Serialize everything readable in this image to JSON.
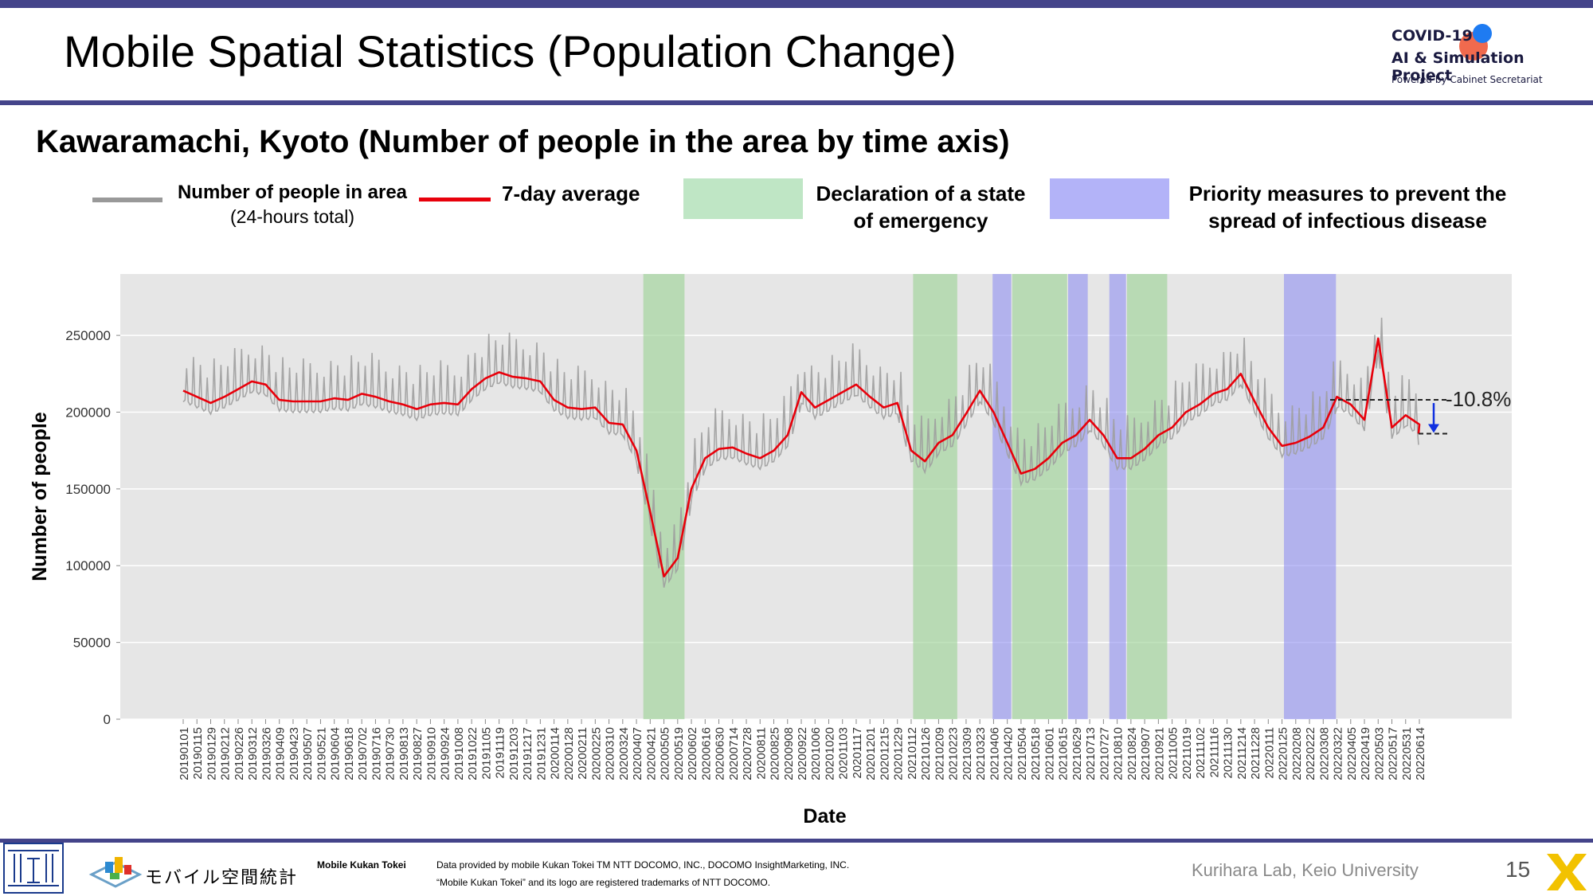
{
  "slide": {
    "title": "Mobile Spatial Statistics (Population Change)",
    "subtitle": "Kawaramachi, Kyoto (Number of people in the area by time axis)",
    "page_number": "15"
  },
  "brand": {
    "line1": "COVID-19",
    "line2": "AI & Simulation Project",
    "line3": "Powered by Cabinet Secretariat"
  },
  "legend": {
    "gray_line_label1": "Number of people in area",
    "gray_line_label2": "(24-hours total)",
    "red_line_label": "7-day average",
    "green_label1": "Declaration of a state",
    "green_label2": "of emergency",
    "blue_label1": "Priority measures to prevent the",
    "blue_label2": "spread of infectious disease"
  },
  "footer": {
    "mkt_logo_text": "モバイル空間統計",
    "mkt_label": "Mobile Kukan Tokei",
    "credit1": "Data provided by mobile Kukan Tokei TM NTT DOCOMO, INC., DOCOMO InsightMarketing, INC.",
    "credit2": "“Mobile Kukan Tokei” and its logo are registered trademarks of NTT DOCOMO.",
    "lab": "Kurihara Lab, Keio University"
  },
  "colors": {
    "accent_bar": "#44448a",
    "daily_line": "#9e9e9e",
    "avg_line": "#e8000b",
    "emergency": "#9fd49a",
    "priority": "#8f8ff2",
    "plot_bg": "#e6e6e6"
  },
  "chart_data": {
    "type": "line",
    "xlabel": "Date",
    "ylabel": "Number of people",
    "ylim": [
      0,
      290000
    ],
    "yticks": [
      0,
      50000,
      100000,
      150000,
      200000,
      250000
    ],
    "grid": true,
    "x_tick_labels": [
      "20190101",
      "20190115",
      "20190129",
      "20190212",
      "20190226",
      "20190312",
      "20190326",
      "20190409",
      "20190423",
      "20190507",
      "20190521",
      "20190604",
      "20190618",
      "20190702",
      "20190716",
      "20190730",
      "20190813",
      "20190827",
      "20190910",
      "20190924",
      "20191008",
      "20191022",
      "20191105",
      "20191119",
      "20191203",
      "20191217",
      "20191231",
      "20200114",
      "20200128",
      "20200211",
      "20200225",
      "20200310",
      "20200324",
      "20200407",
      "20200421",
      "20200505",
      "20200519",
      "20200602",
      "20200616",
      "20200630",
      "20200714",
      "20200728",
      "20200811",
      "20200825",
      "20200908",
      "20200922",
      "20201006",
      "20201020",
      "20201103",
      "20201117",
      "20201201",
      "20201215",
      "20201229",
      "20210112",
      "20210126",
      "20210209",
      "20210223",
      "20210309",
      "20210323",
      "20210406",
      "20210420",
      "20210504",
      "20210518",
      "20210601",
      "20210615",
      "20210629",
      "20210713",
      "20210727",
      "20210810",
      "20210824",
      "20210907",
      "20210921",
      "20211005",
      "20211019",
      "20211102",
      "20211116",
      "20211130",
      "20211214",
      "20211228",
      "20220111",
      "20220125",
      "20220208",
      "20220222",
      "20220308",
      "20220322",
      "20220405",
      "20220419",
      "20220503",
      "20220517",
      "20220531",
      "20220614"
    ],
    "series": [
      {
        "name": "Number of people in area",
        "note": "daily values oscillate approximately ±25000 around the 7-day average, with weekend peaks",
        "x": [],
        "values": []
      },
      {
        "name": "7-day average",
        "x": [
          "20190101",
          "20190115",
          "20190129",
          "20190212",
          "20190226",
          "20190312",
          "20190326",
          "20190409",
          "20190423",
          "20190507",
          "20190521",
          "20190604",
          "20190618",
          "20190702",
          "20190716",
          "20190730",
          "20190813",
          "20190827",
          "20190910",
          "20190924",
          "20191008",
          "20191022",
          "20191105",
          "20191119",
          "20191203",
          "20191217",
          "20191231",
          "20200114",
          "20200128",
          "20200211",
          "20200225",
          "20200310",
          "20200324",
          "20200407",
          "20200421",
          "20200505",
          "20200519",
          "20200602",
          "20200616",
          "20200630",
          "20200714",
          "20200728",
          "20200811",
          "20200825",
          "20200908",
          "20200922",
          "20201006",
          "20201020",
          "20201103",
          "20201117",
          "20201201",
          "20201215",
          "20201229",
          "20210112",
          "20210126",
          "20210209",
          "20210223",
          "20210309",
          "20210323",
          "20210406",
          "20210420",
          "20210504",
          "20210518",
          "20210601",
          "20210615",
          "20210629",
          "20210713",
          "20210727",
          "20210810",
          "20210824",
          "20210907",
          "20210921",
          "20211005",
          "20211019",
          "20211102",
          "20211116",
          "20211130",
          "20211214",
          "20211228",
          "20220111",
          "20220125",
          "20220208",
          "20220222",
          "20220308",
          "20220322",
          "20220405",
          "20220419",
          "20220503",
          "20220517",
          "20220531",
          "20220614"
        ],
        "values": [
          214000,
          210000,
          206000,
          210000,
          215000,
          220000,
          218000,
          208000,
          207000,
          207000,
          207000,
          209000,
          208000,
          212000,
          210000,
          207000,
          205000,
          202000,
          205000,
          206000,
          205000,
          215000,
          222000,
          226000,
          223000,
          222000,
          220000,
          208000,
          203000,
          202000,
          203000,
          193000,
          192000,
          175000,
          135000,
          93000,
          105000,
          150000,
          170000,
          176000,
          177000,
          173000,
          170000,
          175000,
          185000,
          213000,
          203000,
          208000,
          213000,
          218000,
          210000,
          203000,
          206000,
          175000,
          168000,
          180000,
          185000,
          199000,
          214000,
          200000,
          180000,
          160000,
          163000,
          170000,
          180000,
          185000,
          195000,
          185000,
          170000,
          170000,
          176000,
          185000,
          190000,
          200000,
          205000,
          212000,
          215000,
          225000,
          207000,
          190000,
          178000,
          180000,
          184000,
          190000,
          210000,
          205000,
          195000,
          248000,
          190000,
          198000,
          192000
        ]
      }
    ],
    "shaded_periods": [
      {
        "type": "Declaration of a state of emergency",
        "start": "20200414",
        "end": "20200526"
      },
      {
        "type": "Declaration of a state of emergency",
        "start": "20210114",
        "end": "20210228"
      },
      {
        "type": "Priority measures to prevent the spread of infectious disease",
        "start": "20210405",
        "end": "20210424"
      },
      {
        "type": "Declaration of a state of emergency",
        "start": "20210425",
        "end": "20210620"
      },
      {
        "type": "Priority measures to prevent the spread of infectious disease",
        "start": "20210621",
        "end": "20210711"
      },
      {
        "type": "Priority measures to prevent the spread of infectious disease",
        "start": "20210802",
        "end": "20210819"
      },
      {
        "type": "Declaration of a state of emergency",
        "start": "20210820",
        "end": "20210930"
      },
      {
        "type": "Priority measures to prevent the spread of infectious disease",
        "start": "20220127",
        "end": "20220321"
      }
    ],
    "annotation": {
      "text": "-10.8%",
      "from_value": 208000,
      "to_value": 186000
    }
  }
}
